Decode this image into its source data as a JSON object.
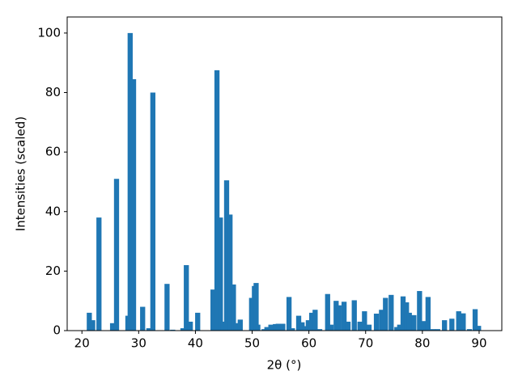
{
  "chart_data": {
    "type": "bar",
    "xlabel": "2θ (°)",
    "ylabel": "Intensities (scaled)",
    "color": "#1f77b4",
    "bar_width": 0.9,
    "x": [
      21.3,
      21.9,
      23.0,
      25.4,
      26.1,
      28.1,
      28.5,
      29.1,
      30.7,
      31.8,
      32.5,
      35.0,
      36.0,
      37.8,
      38.4,
      39.1,
      40.4,
      43.1,
      43.8,
      44.4,
      44.9,
      45.5,
      46.1,
      46.7,
      47.2,
      47.9,
      49.9,
      50.4,
      50.7,
      51.0,
      52.1,
      52.6,
      53.3,
      54.1,
      54.6,
      55.4,
      56.5,
      57.1,
      58.2,
      58.8,
      59.3,
      59.9,
      60.5,
      61.1,
      61.9,
      63.3,
      63.9,
      64.8,
      65.3,
      66.2,
      66.9,
      68.0,
      69.0,
      69.8,
      70.6,
      71.9,
      72.8,
      73.5,
      74.5,
      75.5,
      76.0,
      76.6,
      77.2,
      77.7,
      78.5,
      79.5,
      80.2,
      81.0,
      81.9,
      82.7,
      83.9,
      85.2,
      86.4,
      87.2,
      88.3,
      89.3,
      89.9
    ],
    "values": [
      6,
      3.5,
      38,
      2.5,
      51,
      5,
      100,
      84.5,
      8,
      0.8,
      80,
      15.7,
      0.3,
      0.8,
      22,
      3,
      6,
      13.8,
      87.5,
      38,
      3,
      50.5,
      39,
      15.5,
      2.5,
      3.7,
      11,
      15,
      16,
      2,
      0.5,
      1.2,
      2,
      2.2,
      2.3,
      2.3,
      11.3,
      0.8,
      5,
      2.8,
      1.5,
      3.5,
      6,
      7,
      0.5,
      12.3,
      2,
      10,
      8.5,
      9.7,
      3,
      10.2,
      3,
      6.5,
      2,
      5.7,
      7,
      11,
      12,
      1.2,
      2,
      11.5,
      9.5,
      6,
      5.2,
      13.3,
      3.2,
      11.3,
      0.5,
      0.5,
      3.5,
      4,
      6.5,
      5.8,
      0.5,
      7.2,
      1.6
    ],
    "xlim": [
      17.4,
      94.0
    ],
    "ylim": [
      0,
      105.4
    ],
    "xticks": [
      20,
      30,
      40,
      50,
      60,
      70,
      80,
      90
    ],
    "yticks": [
      0,
      20,
      40,
      60,
      80,
      100
    ]
  }
}
